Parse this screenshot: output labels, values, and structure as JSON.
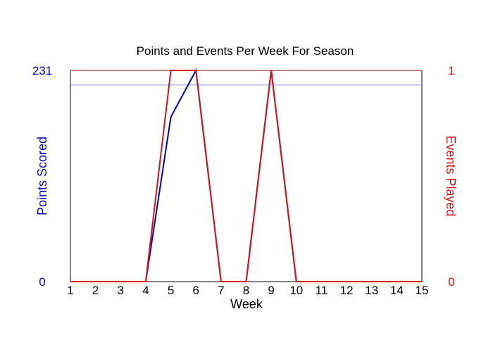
{
  "chart_data": {
    "type": "line",
    "title": "Points and Events Per Week For Season",
    "xlabel": "Week",
    "ylabel_left": "Points Scored",
    "ylabel_right": "Events Played",
    "x": [
      1,
      2,
      3,
      4,
      5,
      6,
      7,
      8,
      9,
      10,
      11,
      12,
      13,
      14,
      15
    ],
    "xlim": [
      1,
      15
    ],
    "ylim_left": [
      0,
      231
    ],
    "ylim_right": [
      0,
      1
    ],
    "yticks_left": [
      "0",
      "231"
    ],
    "yticks_right": [
      "0",
      "1"
    ],
    "reference_line": {
      "axis": "left",
      "value": 215,
      "color": "#8a8ac8"
    },
    "series": [
      {
        "axis": "left",
        "color": "#0000cc",
        "values": [
          0,
          0,
          0,
          0,
          180,
          231,
          0,
          0,
          231,
          0,
          0,
          0,
          0,
          0,
          0
        ]
      },
      {
        "axis": "right",
        "color": "#dd1111",
        "values": [
          0,
          0,
          0,
          0,
          1,
          1,
          0,
          0,
          1,
          0,
          0,
          0,
          0,
          0,
          0
        ]
      }
    ],
    "colors": {
      "left_axis": "#0000cc",
      "right_axis": "#dd1111",
      "frame_top": "#880000",
      "frame": "#000000"
    },
    "grid": false,
    "legend": "none"
  }
}
